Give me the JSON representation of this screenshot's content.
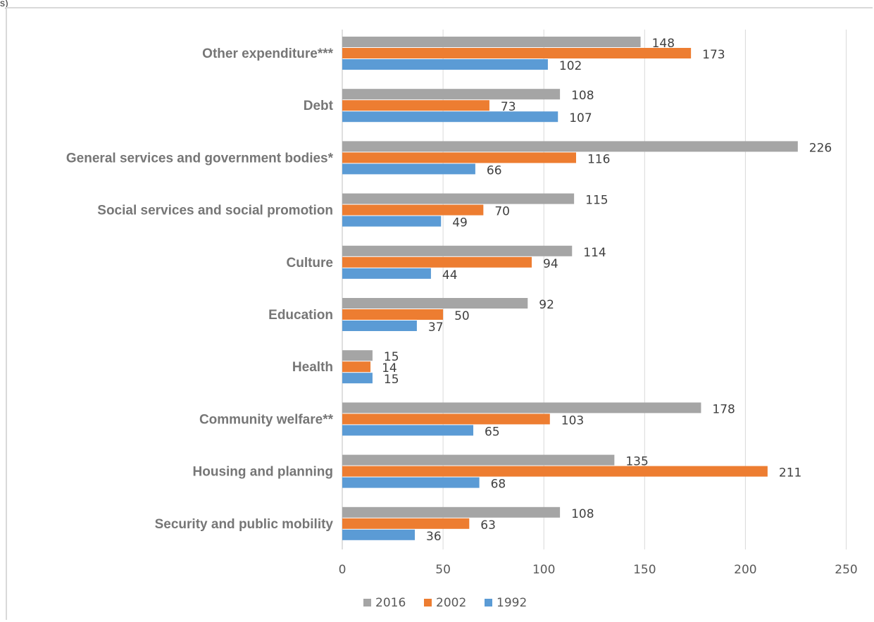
{
  "corner_text": "s)",
  "chart_data": {
    "type": "bar",
    "orientation": "horizontal",
    "categories": [
      "Other expenditure***",
      "Debt",
      "General services and government bodies*",
      "Social services and social promotion",
      "Culture",
      "Education",
      "Health",
      "Community welfare**",
      "Housing and planning",
      "Security and public mobility"
    ],
    "series": [
      {
        "name": "2016",
        "color": "#a5a5a5",
        "values": [
          148,
          108,
          226,
          115,
          114,
          92,
          15,
          178,
          135,
          108
        ]
      },
      {
        "name": "2002",
        "color": "#ed7d31",
        "values": [
          173,
          73,
          116,
          70,
          94,
          50,
          14,
          103,
          211,
          63
        ]
      },
      {
        "name": "1992",
        "color": "#5b9bd5",
        "values": [
          102,
          107,
          66,
          49,
          44,
          37,
          15,
          65,
          68,
          36
        ]
      }
    ],
    "xlim": [
      0,
      250
    ],
    "xticks": [
      0,
      50,
      100,
      150,
      200,
      250
    ],
    "grid": "vertical",
    "legend": "bottom-center"
  }
}
